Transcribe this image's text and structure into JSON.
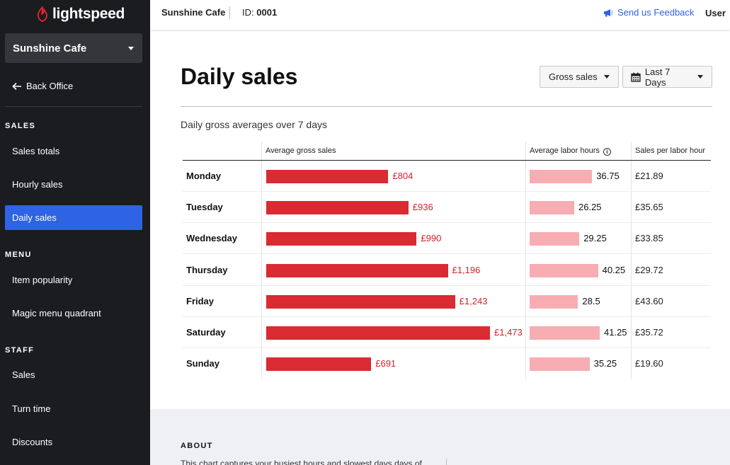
{
  "app": {
    "brand": "lightspeed",
    "store_name": "Sunshine Cafe",
    "back_label": "Back Office"
  },
  "sidebar": {
    "sections": [
      {
        "label": "SALES",
        "items": [
          "Sales totals",
          "Hourly sales",
          "Daily sales"
        ]
      },
      {
        "label": "MENU",
        "items": [
          "Item popularity",
          "Magic menu quadrant"
        ]
      },
      {
        "label": "STAFF",
        "items": [
          "Sales",
          "Turn time",
          "Discounts"
        ]
      }
    ],
    "active_item": "Daily sales"
  },
  "topbar": {
    "store": "Sunshine Cafe",
    "id_label": "ID:",
    "id_value": "0001",
    "feedback": "Send us Feedback",
    "user": "User"
  },
  "page": {
    "title": "Daily sales",
    "metric_select": "Gross sales",
    "date_select": "Last 7 Days",
    "subtitle": "Daily gross averages over 7 days"
  },
  "table": {
    "headers": {
      "gross": "Average gross sales",
      "labor": "Average labor hours",
      "sph": "Sales per labor hour"
    },
    "rows": [
      {
        "day": "Monday",
        "gross": 804,
        "gross_label": "£804",
        "labor": 36.75,
        "labor_label": "36.75",
        "sph": "£21.89"
      },
      {
        "day": "Tuesday",
        "gross": 936,
        "gross_label": "£936",
        "labor": 26.25,
        "labor_label": "26.25",
        "sph": "£35.65"
      },
      {
        "day": "Wednesday",
        "gross": 990,
        "gross_label": "£990",
        "labor": 29.25,
        "labor_label": "29.25",
        "sph": "£33.85"
      },
      {
        "day": "Thursday",
        "gross": 1196,
        "gross_label": "£1,196",
        "labor": 40.25,
        "labor_label": "40.25",
        "sph": "£29.72"
      },
      {
        "day": "Friday",
        "gross": 1243,
        "gross_label": "£1,243",
        "labor": 28.5,
        "labor_label": "28.5",
        "sph": "£43.60"
      },
      {
        "day": "Saturday",
        "gross": 1473,
        "gross_label": "£1,473",
        "labor": 41.25,
        "labor_label": "41.25",
        "sph": "£35.72"
      },
      {
        "day": "Sunday",
        "gross": 691,
        "gross_label": "£691",
        "labor": 35.25,
        "labor_label": "35.25",
        "sph": "£19.60"
      }
    ]
  },
  "about": {
    "title": "ABOUT",
    "text": "This chart captures your busiest hours and slowest days days of"
  },
  "colors": {
    "gross_bar": "#da2a32",
    "labor_bar": "#f7adb1",
    "accent": "#2d63e4",
    "sidebar_bg": "#1b1c20"
  }
}
